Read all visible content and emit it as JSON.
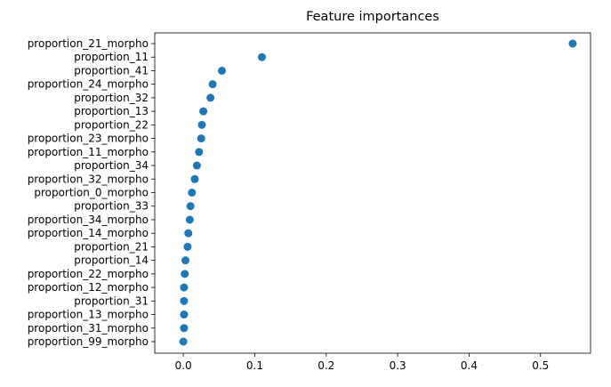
{
  "chart_data": {
    "type": "scatter",
    "title": "Feature importances",
    "xlabel": "",
    "ylabel": "",
    "xlim": [
      -0.04,
      0.57
    ],
    "x_ticks": [
      0.0,
      0.1,
      0.2,
      0.3,
      0.4,
      0.5
    ],
    "x_tick_labels": [
      "0.0",
      "0.1",
      "0.2",
      "0.3",
      "0.4",
      "0.5"
    ],
    "grid": false,
    "legend": "none",
    "marker_color": "#1f77b4",
    "categories": [
      "proportion_21_morpho",
      "proportion_11",
      "proportion_41",
      "proportion_24_morpho",
      "proportion_32",
      "proportion_13",
      "proportion_22",
      "proportion_23_morpho",
      "proportion_11_morpho",
      "proportion_34",
      "proportion_32_morpho",
      "proportion_0_morpho",
      "proportion_33",
      "proportion_34_morpho",
      "proportion_14_morpho",
      "proportion_21",
      "proportion_14",
      "proportion_22_morpho",
      "proportion_12_morpho",
      "proportion_31",
      "proportion_13_morpho",
      "proportion_31_morpho",
      "proportion_99_morpho"
    ],
    "values": [
      0.545,
      0.11,
      0.054,
      0.041,
      0.038,
      0.028,
      0.026,
      0.025,
      0.022,
      0.019,
      0.016,
      0.012,
      0.01,
      0.009,
      0.007,
      0.006,
      0.003,
      0.002,
      0.001,
      0.001,
      0.001,
      0.001,
      0.0
    ]
  }
}
